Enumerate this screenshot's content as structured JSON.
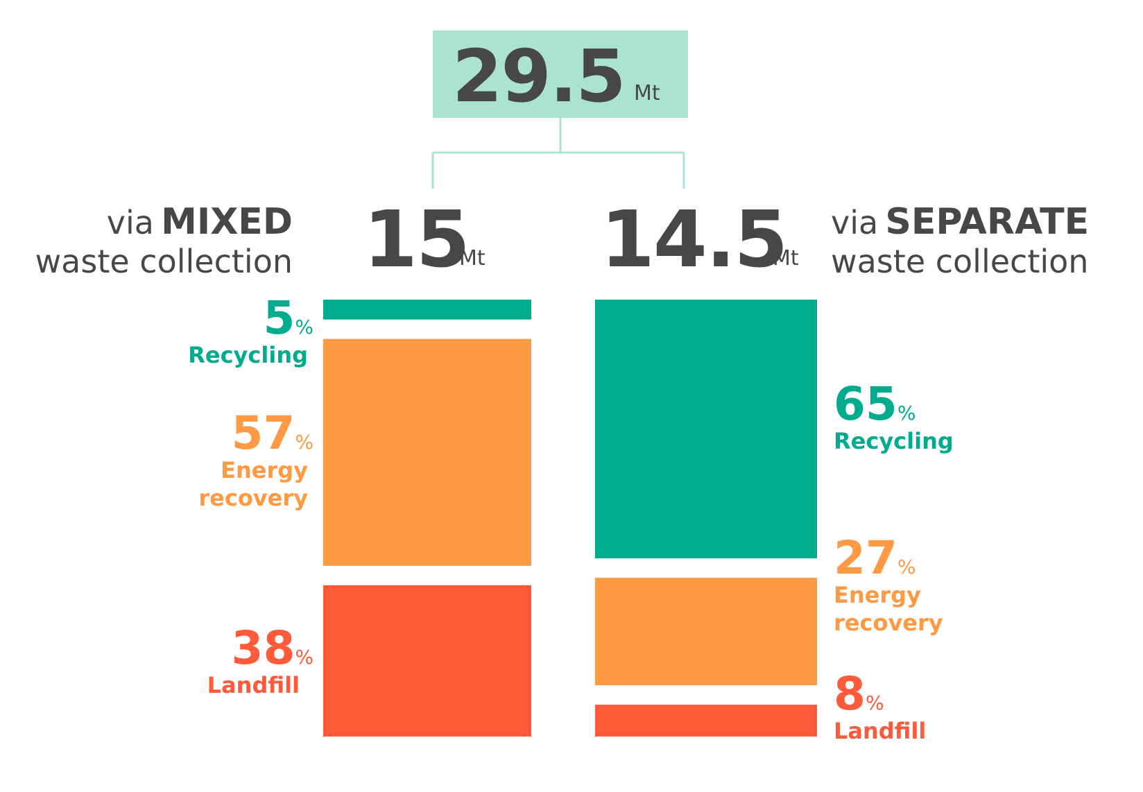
{
  "colors": {
    "recycling": "#00ab8e",
    "energy_recovery": "#ff9a44",
    "landfill": "#ff5b3b",
    "total_box": "#abe3d3",
    "connector": "#abe3d3",
    "text": "#474747"
  },
  "header": {
    "total_value": "29.5",
    "total_unit": "Mt"
  },
  "mixed": {
    "prefix": "via",
    "bold": "MIXED",
    "subtitle": "waste collection",
    "amount": "15",
    "unit": "Mt"
  },
  "separate": {
    "prefix": "via",
    "bold": "SEPARATE",
    "subtitle": "waste collection",
    "amount": "14.5",
    "unit": "Mt"
  },
  "labels": {
    "mixed": [
      {
        "value": "5",
        "pct": "%",
        "name": "Recycling"
      },
      {
        "value": "57",
        "pct": "%",
        "name": "Energy recovery"
      },
      {
        "value": "38",
        "pct": "%",
        "name": "Landfill"
      }
    ],
    "separate": [
      {
        "value": "65",
        "pct": "%",
        "name": "Recycling"
      },
      {
        "value": "27",
        "pct": "%",
        "name": "Energy recovery"
      },
      {
        "value": "8",
        "pct": "%",
        "name": "Landfill"
      }
    ]
  },
  "chart_data": {
    "type": "bar",
    "total": 29.5,
    "unit": "Mt",
    "categories": [
      "MIXED",
      "SEPARATE"
    ],
    "amounts": [
      15,
      14.5
    ],
    "series": [
      {
        "name": "Recycling",
        "values": [
          5,
          65
        ]
      },
      {
        "name": "Energy recovery",
        "values": [
          57,
          27
        ]
      },
      {
        "name": "Landfill",
        "values": [
          38,
          8
        ]
      }
    ]
  }
}
